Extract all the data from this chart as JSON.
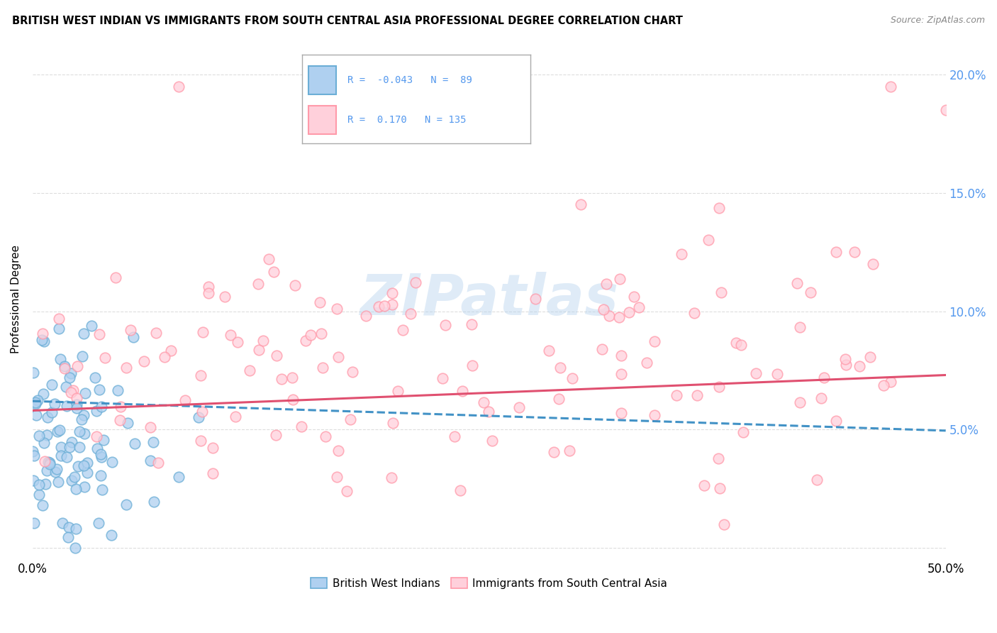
{
  "title": "BRITISH WEST INDIAN VS IMMIGRANTS FROM SOUTH CENTRAL ASIA PROFESSIONAL DEGREE CORRELATION CHART",
  "source": "Source: ZipAtlas.com",
  "ylabel": "Professional Degree",
  "ytick_vals": [
    0.0,
    0.05,
    0.1,
    0.15,
    0.2
  ],
  "xlim": [
    0.0,
    0.5
  ],
  "ylim": [
    -0.005,
    0.215
  ],
  "blue_face_color": "#afd0f0",
  "blue_edge_color": "#6baed6",
  "pink_face_color": "#ffd0db",
  "pink_edge_color": "#ff9aaa",
  "blue_line_color": "#4292c6",
  "pink_line_color": "#e05070",
  "blue_R": -0.043,
  "blue_N": 89,
  "pink_R": 0.17,
  "pink_N": 135,
  "watermark": "ZIPatlas",
  "background_color": "#ffffff",
  "grid_color": "#dddddd",
  "right_ytick_color": "#5599ee",
  "blue_intercept": 0.062,
  "blue_slope": -0.025,
  "pink_intercept": 0.058,
  "pink_slope": 0.03
}
